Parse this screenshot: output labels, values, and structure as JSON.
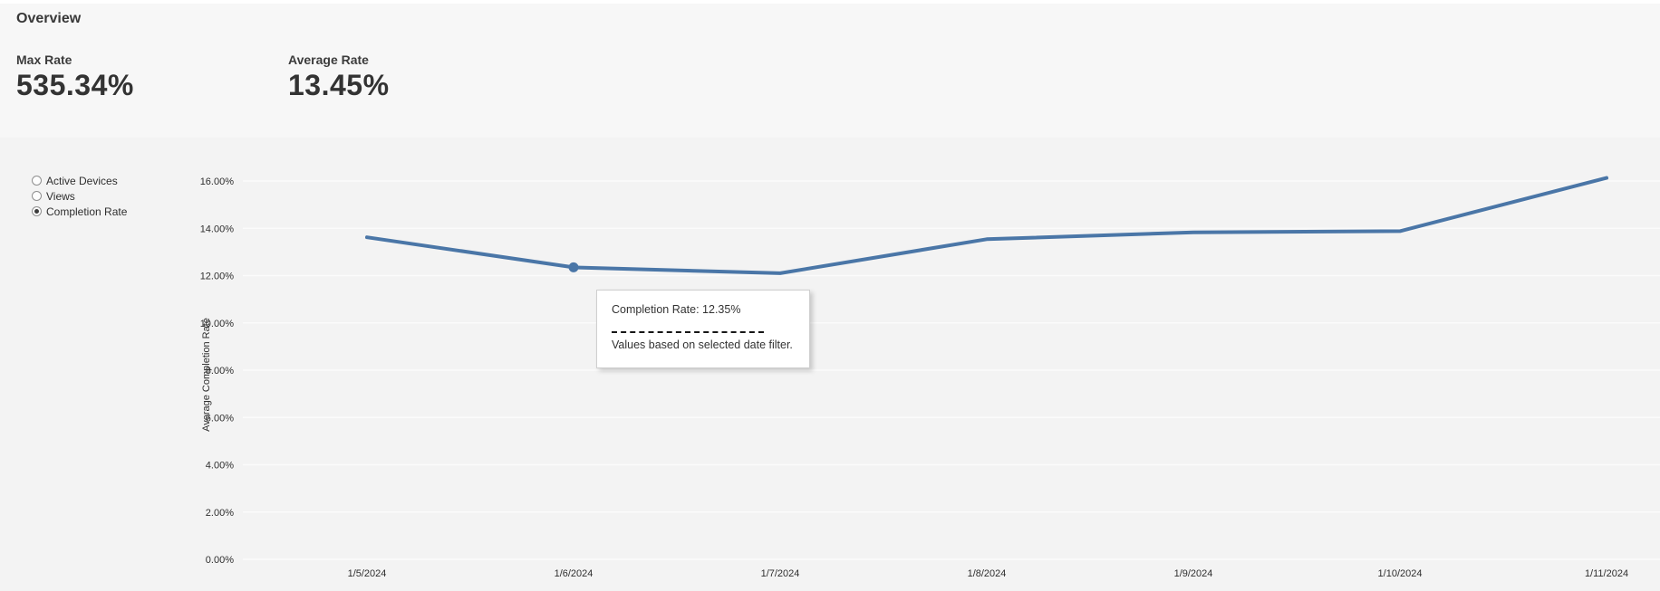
{
  "page": {
    "title": "Overview"
  },
  "metrics": [
    {
      "label": "Max Rate",
      "value": "535.34%"
    },
    {
      "label": "Average Rate",
      "value": "13.45%"
    }
  ],
  "measure_selector": {
    "options": [
      {
        "label": "Active Devices",
        "selected": false
      },
      {
        "label": "Views",
        "selected": false
      },
      {
        "label": "Completion Rate",
        "selected": true
      }
    ]
  },
  "tooltip": {
    "line1": "Completion Rate: 12.35%",
    "line2": "Values based on selected date filter."
  },
  "chart_data": {
    "type": "line",
    "title": "",
    "xlabel": "",
    "ylabel": "Average Completion Rate",
    "x": [
      "1/5/2024",
      "1/6/2024",
      "1/7/2024",
      "1/8/2024",
      "1/9/2024",
      "1/10/2024",
      "1/11/2024"
    ],
    "series": [
      {
        "name": "Completion Rate",
        "values": [
          13.62,
          12.35,
          12.1,
          13.54,
          13.83,
          13.88,
          16.13
        ]
      }
    ],
    "ylim": [
      0,
      16
    ],
    "ytick_step": 2,
    "ytick_suffix": "%",
    "grid": true,
    "legend": "none",
    "highlight_index": 1,
    "line_color": "#4a76a7",
    "grid_color": "#fbfbfb",
    "tick_color": "#2e2e2e"
  }
}
